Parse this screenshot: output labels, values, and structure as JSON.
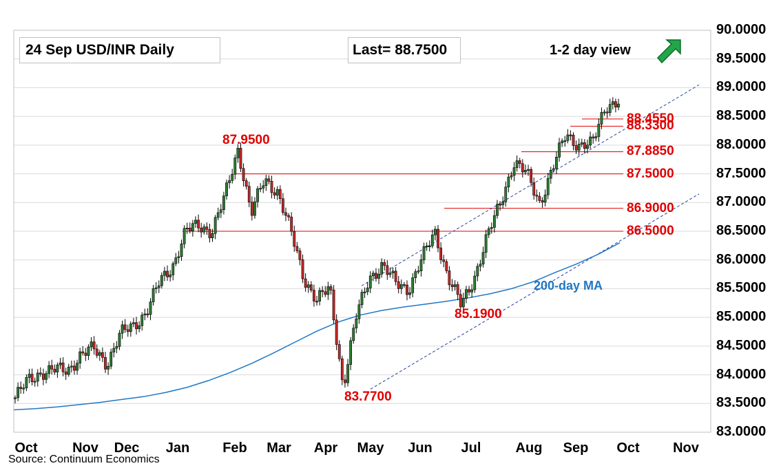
{
  "header": {
    "title_box": "24 Sep  USD/INR  Daily",
    "last_box": "Last= 88.7500",
    "view": "1-2 day view",
    "trend_icon": "up-right-arrow-icon",
    "trend_color": "#22a64a"
  },
  "source": "Source: Continuum Economics",
  "ma_label": "200-day MA",
  "colors": {
    "level": "#e00000",
    "ma": "#1f77c4",
    "channel": "#1f3fa0"
  },
  "chart_data": {
    "type": "line",
    "title": "24 Sep  USD/INR  Daily",
    "ylim": [
      83.0,
      90.0
    ],
    "y_ticks": [
      "90.0000",
      "89.5000",
      "89.0000",
      "88.5000",
      "88.0000",
      "87.5000",
      "87.0000",
      "86.5000",
      "86.0000",
      "85.5000",
      "85.0000",
      "84.5000",
      "84.0000",
      "83.5000",
      "83.0000"
    ],
    "x_ticks": [
      "Oct",
      "Nov",
      "Dec",
      "Jan",
      "Feb",
      "Mar",
      "Apr",
      "May",
      "Jun",
      "Jul",
      "Aug",
      "Sep",
      "Oct",
      "Nov"
    ],
    "grid": true,
    "last": 88.75,
    "levels": [
      {
        "label": "88.4550",
        "value": 88.455
      },
      {
        "label": "88.3300",
        "value": 88.33
      },
      {
        "label": "87.8850",
        "value": 87.885
      },
      {
        "label": "87.5000",
        "value": 87.5
      },
      {
        "label": "86.9000",
        "value": 86.9
      },
      {
        "label": "86.5000",
        "value": 86.5
      }
    ],
    "annotations": [
      {
        "label": "87.9500",
        "value": 87.95,
        "month": "Feb"
      },
      {
        "label": "83.7700",
        "value": 83.77,
        "month": "May"
      },
      {
        "label": "85.1900",
        "value": 85.19,
        "month": "Jul"
      }
    ],
    "series": [
      {
        "name": "200-day MA",
        "values": [
          83.39,
          83.41,
          83.44,
          83.48,
          83.52,
          83.57,
          83.62,
          83.69,
          83.78,
          83.9,
          84.04,
          84.2,
          84.38,
          84.57,
          84.76,
          84.92,
          85.04,
          85.12,
          85.18,
          85.23,
          85.28,
          85.34,
          85.41,
          85.5,
          85.62,
          85.78,
          85.93,
          86.1,
          86.3
        ]
      },
      {
        "name": "USD/INR",
        "values": [
          83.6,
          83.9,
          84.05,
          84.08,
          84.08,
          84.35,
          84.45,
          84.2,
          84.7,
          84.85,
          85.1,
          85.6,
          85.9,
          86.5,
          86.6,
          86.5,
          87.1,
          87.95,
          86.8,
          87.4,
          87.2,
          86.5,
          85.7,
          85.3,
          85.5,
          83.8,
          85.0,
          85.7,
          85.9,
          85.6,
          85.5,
          86.0,
          86.5,
          85.7,
          85.2,
          85.7,
          86.4,
          87.0,
          87.7,
          87.5,
          87.0,
          87.6,
          88.2,
          88.0,
          88.0,
          88.7,
          88.75
        ]
      }
    ]
  }
}
